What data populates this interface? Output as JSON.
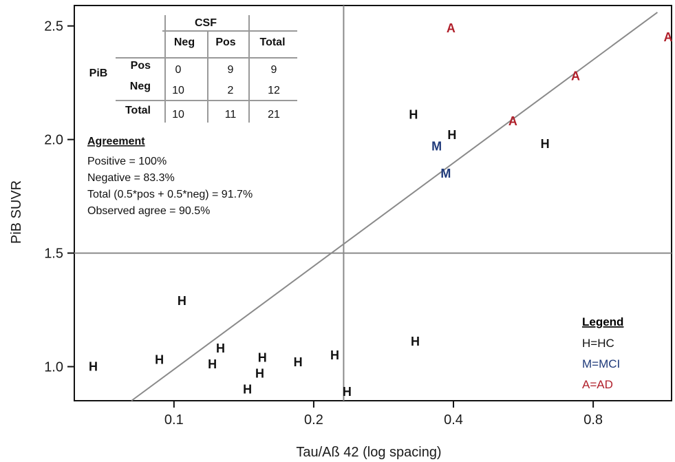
{
  "chart_data": {
    "type": "scatter",
    "xlabel": "Tau/Aß 42 (log spacing)",
    "ylabel": "PiB SUVR",
    "x_scale": "log",
    "xlim": [
      0.061,
      1.18
    ],
    "ylim": [
      0.85,
      2.59
    ],
    "x_ticks": [
      0.1,
      0.2,
      0.4,
      0.8
    ],
    "x_tick_labels": [
      "0.1",
      "0.2",
      "0.4",
      "0.8"
    ],
    "y_ticks": [
      1.0,
      1.5,
      2.0,
      2.5
    ],
    "y_tick_labels": [
      "1.0",
      "1.5",
      "2.0",
      "2.5"
    ],
    "grid": false,
    "cutoff_lines": {
      "x": 0.232,
      "y": 1.5
    },
    "fit_line": {
      "x": [
        0.081,
        1.1
      ],
      "y": [
        0.85,
        2.56
      ]
    },
    "colors": {
      "H": "#111111",
      "M": "#1f3a7a",
      "A": "#b01f2a",
      "lines": "#8a8a8a"
    },
    "points": [
      {
        "x": 0.067,
        "y": 1.0,
        "group": "H",
        "label": "H"
      },
      {
        "x": 0.093,
        "y": 1.03,
        "group": "H",
        "label": "H"
      },
      {
        "x": 0.104,
        "y": 1.29,
        "group": "H",
        "label": "H"
      },
      {
        "x": 0.121,
        "y": 1.01,
        "group": "H",
        "label": "H"
      },
      {
        "x": 0.126,
        "y": 1.08,
        "group": "H",
        "label": "H"
      },
      {
        "x": 0.144,
        "y": 0.9,
        "group": "H",
        "label": "H"
      },
      {
        "x": 0.153,
        "y": 0.97,
        "group": "H",
        "label": "H"
      },
      {
        "x": 0.155,
        "y": 1.04,
        "group": "H",
        "label": "H"
      },
      {
        "x": 0.185,
        "y": 1.02,
        "group": "H",
        "label": "H"
      },
      {
        "x": 0.222,
        "y": 1.05,
        "group": "H",
        "label": "H"
      },
      {
        "x": 0.236,
        "y": 0.89,
        "group": "H",
        "label": "H"
      },
      {
        "x": 0.331,
        "y": 1.11,
        "group": "H",
        "label": "H"
      },
      {
        "x": 0.328,
        "y": 2.11,
        "group": "H",
        "label": "H"
      },
      {
        "x": 0.397,
        "y": 2.02,
        "group": "H",
        "label": "H"
      },
      {
        "x": 0.63,
        "y": 1.98,
        "group": "H",
        "label": "H"
      },
      {
        "x": 0.368,
        "y": 1.97,
        "group": "M",
        "label": "M"
      },
      {
        "x": 0.385,
        "y": 1.85,
        "group": "M",
        "label": "M"
      },
      {
        "x": 0.395,
        "y": 2.49,
        "group": "A",
        "label": "A"
      },
      {
        "x": 0.537,
        "y": 2.08,
        "group": "A",
        "label": "A"
      },
      {
        "x": 0.733,
        "y": 2.28,
        "group": "A",
        "label": "A"
      },
      {
        "x": 1.16,
        "y": 2.45,
        "group": "A",
        "label": "A"
      }
    ],
    "legend": {
      "title": "Legend",
      "placement": "bottom-right",
      "entries": [
        {
          "label": "H=HC",
          "group": "H"
        },
        {
          "label": "M=MCI",
          "group": "M"
        },
        {
          "label": "A=AD",
          "group": "A"
        }
      ]
    },
    "table": {
      "col_group": "CSF",
      "col_headers": [
        "Neg",
        "Pos",
        "Total"
      ],
      "row_group": "PiB",
      "rows": [
        {
          "label": "Pos",
          "values": [
            "0",
            "9",
            "9"
          ]
        },
        {
          "label": "Neg",
          "values": [
            "10",
            "2",
            "12"
          ]
        }
      ],
      "total_row": {
        "label": "Total",
        "values": [
          "10",
          "11",
          "21"
        ]
      }
    },
    "agreement": {
      "title": "Agreement",
      "lines": [
        "Positive = 100%",
        "Negative = 83.3%",
        "Total (0.5*pos + 0.5*neg) = 91.7%",
        "Observed agree = 90.5%"
      ]
    }
  }
}
